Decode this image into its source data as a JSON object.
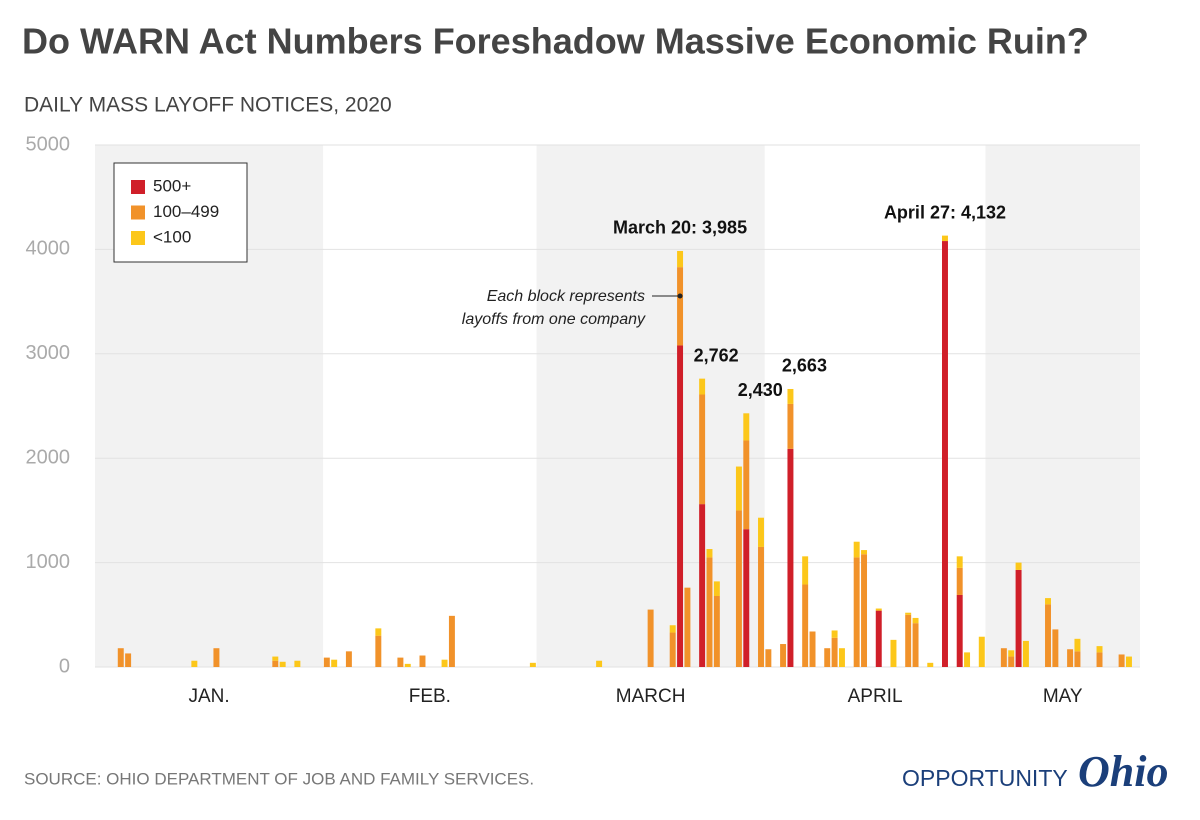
{
  "chart_data": {
    "type": "stacked-bar",
    "title": "Do WARN Act Numbers Foreshadow Massive Economic Ruin?",
    "subtitle": "DAILY MASS LAYOFF NOTICES, 2020",
    "source": "SOURCE: OHIO DEPARTMENT OF JOB AND FAMILY SERVICES.",
    "logo": [
      "OPPORTUNITY",
      "Ohio"
    ],
    "note": [
      "Each block represents",
      "layoffs from one company"
    ],
    "categories": [
      "JAN.",
      null,
      null,
      null,
      null,
      null,
      null,
      null,
      null,
      null,
      null,
      null,
      null,
      null,
      null,
      null,
      null,
      null,
      null,
      null,
      null,
      null,
      null,
      null,
      null,
      null,
      null,
      null,
      null,
      null,
      null,
      "FEB.",
      null,
      null,
      null,
      null,
      null,
      null,
      null,
      null,
      null,
      null,
      null,
      null,
      null,
      null,
      null,
      null,
      null,
      null,
      null,
      null,
      null,
      null,
      null,
      null,
      null,
      null,
      null,
      null,
      "MARCH",
      null,
      null,
      null,
      null,
      null,
      null,
      null,
      null,
      null,
      null,
      null,
      null,
      null,
      null,
      null,
      null,
      null,
      null,
      null,
      null,
      null,
      null,
      null,
      null,
      null,
      null,
      null,
      null,
      null,
      null,
      "APRIL",
      null,
      null,
      null,
      null,
      null,
      null,
      null,
      null,
      null,
      null,
      null,
      null,
      null,
      null,
      null,
      null,
      null,
      null,
      null,
      null,
      null,
      null,
      null,
      null,
      null,
      null,
      null,
      null,
      null,
      "MAY",
      null,
      null,
      null,
      null,
      null,
      null,
      null,
      null,
      null,
      null,
      null,
      null,
      null,
      null,
      null,
      null,
      null,
      null,
      null,
      null
    ],
    "series": [
      {
        "name": "500+",
        "color": "#d01f29",
        "values": [
          0,
          0,
          0,
          0,
          0,
          0,
          0,
          0,
          0,
          0,
          0,
          0,
          0,
          0,
          0,
          0,
          0,
          0,
          0,
          0,
          0,
          0,
          0,
          0,
          0,
          0,
          0,
          0,
          0,
          0,
          0,
          0,
          0,
          0,
          0,
          0,
          0,
          0,
          0,
          0,
          0,
          0,
          0,
          0,
          0,
          0,
          0,
          0,
          0,
          0,
          0,
          0,
          0,
          0,
          0,
          0,
          0,
          0,
          0,
          0,
          0,
          0,
          0,
          0,
          0,
          0,
          0,
          0,
          0,
          0,
          0,
          0,
          0,
          0,
          0,
          0,
          0,
          0,
          0,
          3080,
          0,
          0,
          1560,
          0,
          0,
          0,
          0,
          0,
          1320,
          0,
          0,
          0,
          0,
          0,
          2090,
          0,
          0,
          0,
          0,
          0,
          0,
          0,
          0,
          0,
          0,
          0,
          540,
          0,
          0,
          0,
          0,
          0,
          0,
          0,
          0,
          4080,
          0,
          690,
          0,
          0,
          0,
          0,
          0,
          0,
          0,
          930,
          0,
          0,
          0,
          0,
          0,
          0,
          0,
          0,
          0,
          0,
          0,
          0,
          0,
          0,
          0,
          0
        ]
      },
      {
        "name": "100–499",
        "color": "#f1922a",
        "values": [
          0,
          0,
          0,
          180,
          130,
          0,
          0,
          0,
          0,
          0,
          0,
          0,
          0,
          0,
          0,
          0,
          180,
          0,
          0,
          0,
          0,
          0,
          0,
          0,
          60,
          0,
          0,
          0,
          0,
          0,
          0,
          90,
          0,
          0,
          150,
          0,
          0,
          0,
          300,
          0,
          0,
          90,
          0,
          0,
          110,
          0,
          0,
          0,
          490,
          0,
          0,
          0,
          0,
          0,
          0,
          0,
          0,
          0,
          0,
          0,
          0,
          0,
          0,
          0,
          0,
          0,
          0,
          0,
          0,
          0,
          0,
          0,
          0,
          0,
          0,
          550,
          0,
          0,
          330,
          750,
          760,
          0,
          1050,
          1050,
          680,
          0,
          0,
          1500,
          850,
          0,
          1150,
          170,
          0,
          220,
          430,
          0,
          790,
          340,
          0,
          180,
          280,
          0,
          0,
          1050,
          1080,
          0,
          0,
          0,
          0,
          0,
          500,
          420,
          0,
          0,
          0,
          0,
          0,
          260,
          0,
          0,
          0,
          0,
          0,
          180,
          100,
          0,
          0,
          0,
          0,
          600,
          360,
          0,
          170,
          150,
          0,
          0,
          140,
          0,
          0,
          120,
          0,
          0
        ]
      },
      {
        "name": "<100",
        "color": "#fcc71a",
        "values": [
          0,
          0,
          0,
          0,
          0,
          0,
          0,
          0,
          0,
          0,
          0,
          0,
          0,
          60,
          0,
          0,
          0,
          0,
          0,
          0,
          0,
          0,
          0,
          0,
          40,
          50,
          0,
          60,
          0,
          0,
          0,
          0,
          70,
          0,
          0,
          0,
          0,
          0,
          70,
          0,
          0,
          0,
          30,
          0,
          0,
          0,
          0,
          70,
          0,
          0,
          0,
          0,
          0,
          0,
          0,
          0,
          0,
          0,
          0,
          40,
          0,
          0,
          0,
          0,
          0,
          0,
          0,
          0,
          60,
          0,
          0,
          0,
          0,
          0,
          0,
          0,
          0,
          0,
          70,
          155,
          0,
          0,
          152,
          80,
          140,
          0,
          0,
          420,
          260,
          0,
          280,
          0,
          0,
          0,
          143,
          0,
          270,
          0,
          0,
          0,
          70,
          180,
          0,
          150,
          40,
          0,
          20,
          0,
          260,
          0,
          20,
          50,
          0,
          40,
          0,
          52,
          0,
          110,
          140,
          0,
          290,
          0,
          0,
          0,
          60,
          70,
          250,
          0,
          0,
          60,
          0,
          0,
          0,
          120,
          0,
          0,
          60,
          0,
          0,
          0,
          100,
          0
        ]
      }
    ],
    "annotations": [
      {
        "text": "March 20: 3,985",
        "x": 79
      },
      {
        "text": "2,762",
        "x": 82
      },
      {
        "text": "2,430",
        "x": 88
      },
      {
        "text": "2,663",
        "x": 94
      },
      {
        "text": "April 27: 4,132",
        "x": 115
      }
    ],
    "ylim": [
      0,
      5000
    ],
    "yticks": [
      0,
      1000,
      2000,
      3000,
      4000,
      5000
    ],
    "grid": true,
    "legend": "top-left"
  }
}
